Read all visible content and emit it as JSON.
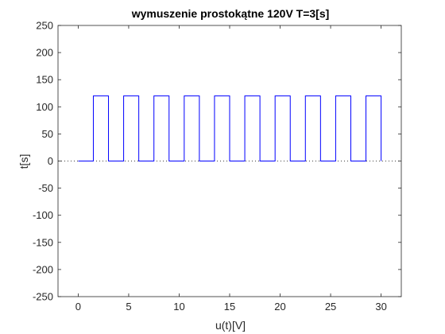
{
  "chart_data": {
    "type": "line",
    "title": "wymuszenie prostokątne 120V T=3[s]",
    "xlabel": "u(t)[V]",
    "ylabel": "t[s]",
    "xlim": [
      -2,
      32
    ],
    "ylim": [
      -250,
      250
    ],
    "xticks": [
      0,
      5,
      10,
      15,
      20,
      25,
      30
    ],
    "yticks": [
      -250,
      -200,
      -150,
      -100,
      -50,
      0,
      50,
      100,
      150,
      200,
      250
    ],
    "grid": false,
    "zero_line": {
      "y": 0,
      "style": "dotted",
      "color": "#000000"
    },
    "series": [
      {
        "color": "#0000ff",
        "x": [
          0,
          1.5,
          1.5,
          3,
          3,
          4.5,
          4.5,
          6,
          6,
          7.5,
          7.5,
          9,
          9,
          10.5,
          10.5,
          12,
          12,
          13.5,
          13.5,
          15,
          15,
          16.5,
          16.5,
          18,
          18,
          19.5,
          19.5,
          21,
          21,
          22.5,
          22.5,
          24,
          24,
          25.5,
          25.5,
          27,
          27,
          28.5,
          28.5,
          30,
          30
        ],
        "y": [
          0,
          0,
          120,
          120,
          0,
          0,
          120,
          120,
          0,
          0,
          120,
          120,
          0,
          0,
          120,
          120,
          0,
          0,
          120,
          120,
          0,
          0,
          120,
          120,
          0,
          0,
          120,
          120,
          0,
          0,
          120,
          120,
          0,
          0,
          120,
          120,
          0,
          0,
          120,
          120,
          0
        ]
      }
    ]
  }
}
